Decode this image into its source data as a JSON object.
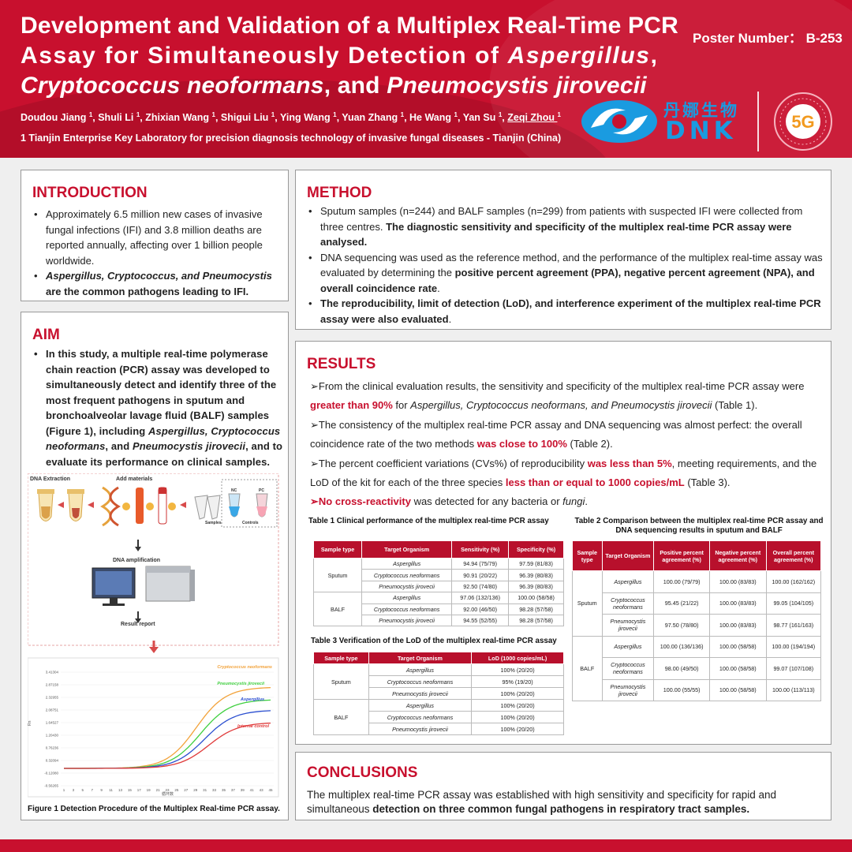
{
  "header": {
    "title_line1": "Development and Validation of a Multiplex Real-Time PCR",
    "title_line2_a": "Assay for Simultaneously Detection of ",
    "title_line2_b": "Aspergillus",
    "title_line2_c": ",",
    "title_line3_a": "Cryptococcus neoformans",
    "title_line3_b": ", and ",
    "title_line3_c": "Pneumocystis jirovecii",
    "poster_number": "Poster Number： B-253",
    "authors": [
      {
        "name": "Doudou Jiang",
        "sup": "1"
      },
      {
        "name": "Shuli Li",
        "sup": "1"
      },
      {
        "name": "Zhixian Wang",
        "sup": "1"
      },
      {
        "name": "Shigui Liu",
        "sup": "1"
      },
      {
        "name": "Ying Wang",
        "sup": "1"
      },
      {
        "name": "Yuan Zhang",
        "sup": "1"
      },
      {
        "name": "He Wang",
        "sup": "1"
      },
      {
        "name": "Yan Su",
        "sup": "1"
      },
      {
        "name": "Zeqi Zhou",
        "sup": "1"
      }
    ],
    "affiliation": "1 Tianjin Enterprise Key Laboratory for precision diagnosis technology of invasive fungal diseases - Tianjin (China)"
  },
  "logo": {
    "cn_text": "丹娜生物",
    "brand": "DNK",
    "badge": "5G",
    "colors": {
      "brand_blue": "#1a9be0",
      "brand_red": "#c8102e"
    }
  },
  "introduction": {
    "heading": "INTRODUCTION",
    "b1": "Approximately 6.5 million new cases of invasive fungal infections (IFI) and 3.8 million deaths are reported annually, affecting over 1 billion people worldwide.",
    "b2_a": "Aspergillus, Cryptococcus, and Pneumocystis",
    "b2_b": " are the common pathogens leading to IFI."
  },
  "aim": {
    "heading": "AIM",
    "t1": "In this study, a multiple real-time polymerase chain reaction (PCR) assay was developed to simultaneously detect and identify three of the most frequent pathogens in sputum and bronchoalveolar lavage fluid (BALF) samples (Figure 1), including ",
    "t2": "Aspergillus, Cryptococcus neoformans",
    "t3": ", and ",
    "t4": "Pneumocystis jirovecii",
    "t5": ", and to evaluate its performance on clinical samples."
  },
  "figure1": {
    "dna_extraction": "DNA Extraction",
    "add_materials": "Add materials",
    "nc": "NC",
    "pc": "PC",
    "samples": "Samples",
    "controls": "Controls",
    "dna_amplification": "DNA amplification",
    "result_report": "Result report",
    "curve_labels": [
      "Cryptococcus neoformans",
      "Pneumocystis jirovecii",
      "Aspergillus",
      "Internal control"
    ],
    "curve_colors": [
      "#f2a23a",
      "#3ecf3e",
      "#2b4fd0",
      "#e03a3a"
    ],
    "y_ticks": [
      "3.41304",
      "2.87158",
      "2.32955",
      "2.08751",
      "1.64527",
      "1.20430",
      "0.76236",
      "0.32094",
      "-0.12080",
      "-0.56265"
    ],
    "x_ticks": [
      "1",
      "3",
      "5",
      "7",
      "9",
      "11",
      "13",
      "15",
      "17",
      "19",
      "21",
      "23",
      "25",
      "27",
      "29",
      "31",
      "33",
      "35",
      "37",
      "39",
      "41",
      "43",
      "45"
    ],
    "caption": "Figure 1 Detection Procedure of the Multiplex Real-time PCR assay."
  },
  "method": {
    "heading": "METHOD",
    "b1_a": "Sputum samples (n=244) and BALF samples (n=299) from patients with suspected IFI were collected from three centres. ",
    "b1_b": "The diagnostic sensitivity and specificity of the multiplex real-time PCR assay were analysed.",
    "b2_a": "DNA sequencing was used as the reference method, and the performance of the multiplex real-time assay was evaluated by determining the ",
    "b2_b": "positive percent agreement (PPA), negative percent agreement (NPA), and overall coincidence rate",
    "b2_c": ".",
    "b3_a": "The reproducibility, limit of detection (LoD), and interference experiment of the multiplex real-time PCR assay were also evaluated",
    "b3_b": "."
  },
  "results": {
    "heading": "RESULTS",
    "p1_a": "➢From the clinical evaluation results, the sensitivity and specificity of the multiplex real-time PCR assay were ",
    "p1_b": "greater than 90%",
    "p1_c": " for ",
    "p1_d": "Aspergillus, Cryptococcus neoformans, and Pneumocystis jirovecii",
    "p1_e": " (Table 1).",
    "p2_a": "➢The consistency of the multiplex real-time PCR assay and DNA sequencing was almost perfect: the overall coincidence rate of the two methods ",
    "p2_b": "was close to 100%",
    "p2_c": " (Table 2).",
    "p3_a": "➢The percent coefficient variations (CVs%) of reproducibility ",
    "p3_b": "was less than 5%",
    "p3_c": ", meeting requirements, and the LoD of the kit for each of the three species ",
    "p3_d": "less than or equal to 1000 copies/mL",
    "p3_e": " (Table 3).",
    "p4_a": "➢No cross-reactivity",
    "p4_b": " was detected for any bacteria or ",
    "p4_c": "fungi",
    "p4_d": "."
  },
  "table1": {
    "caption": "Table  1  Clinical performance of the multiplex real-time PCR assay",
    "headers": [
      "Sample type",
      "Target Organism",
      "Sensitivity (%)",
      "Specificity (%)"
    ],
    "groups": [
      {
        "sample": "Sputum",
        "rows": [
          [
            "Aspergillus",
            "94.94 (75/79)",
            "97.59 (81/83)"
          ],
          [
            "Cryptococcus neoformans",
            "90.91 (20/22)",
            "96.39 (80/83)"
          ],
          [
            "Pneumocystis jirovecii",
            "92.50 (74/80)",
            "96.39 (80/83)"
          ]
        ]
      },
      {
        "sample": "BALF",
        "rows": [
          [
            "Aspergillus",
            "97.06 (132/136)",
            "100.00 (58/58)"
          ],
          [
            "Cryptococcus neoformans",
            "92.00 (46/50)",
            "98.28 (57/58)"
          ],
          [
            "Pneumocystis jirovecii",
            "94.55 (52/55)",
            "98.28 (57/58)"
          ]
        ]
      }
    ]
  },
  "table2": {
    "caption_line1": "Table  2 Comparison between the multiplex real-time PCR assay and",
    "caption_line2": "DNA sequencing results in sputum and BALF",
    "headers": [
      "Sample type",
      "Target Organism",
      "Positive percent agreement (%)",
      "Negative percent agreement (%)",
      "Overall percent agreement (%)"
    ],
    "groups": [
      {
        "sample": "Sputum",
        "rows": [
          [
            "Aspergillus",
            "100.00 (79/79)",
            "100.00 (83/83)",
            "100.00 (162/162)"
          ],
          [
            "Cryptococcus neoformans",
            "95.45 (21/22)",
            "100.00 (83/83)",
            "99.05 (104/105)"
          ],
          [
            "Pneumocystis jirovecii",
            "97.50 (78/80)",
            "100.00 (83/83)",
            "98.77 (161/163)"
          ]
        ]
      },
      {
        "sample": "BALF",
        "rows": [
          [
            "Aspergillus",
            "100.00 (136/136)",
            "100.00 (58/58)",
            "100.00 (194/194)"
          ],
          [
            "Cryptococcus neoformans",
            "98.00 (49/50)",
            "100.00 (58/58)",
            "99.07 (107/108)"
          ],
          [
            "Pneumocystis jirovecii",
            "100.00 (55/55)",
            "100.00 (58/58)",
            "100.00 (113/113)"
          ]
        ]
      }
    ]
  },
  "table3": {
    "caption": "Table 3  Verification of the LoD of the multiplex real-time PCR assay",
    "headers": [
      "Sample type",
      "Target Organism",
      "LoD (1000 copies/mL)"
    ],
    "groups": [
      {
        "sample": "Sputum",
        "rows": [
          [
            "Aspergillus",
            "100% (20/20)"
          ],
          [
            "Cryptococcus neoformans",
            "95% (19/20)"
          ],
          [
            "Pneumocystis jirovecii",
            "100% (20/20)"
          ]
        ]
      },
      {
        "sample": "BALF",
        "rows": [
          [
            "Aspergillus",
            "100% (20/20)"
          ],
          [
            "Cryptococcus neoformans",
            "100% (20/20)"
          ],
          [
            "Pneumocystis jirovecii",
            "100% (20/20)"
          ]
        ]
      }
    ]
  },
  "conclusions": {
    "heading": "CONCLUSIONS",
    "text_a": "The multiplex real-time PCR assay was established with high sensitivity and specificity for rapid and simultaneous ",
    "text_b": "detection on three common fungal pathogens in respiratory tract samples."
  }
}
